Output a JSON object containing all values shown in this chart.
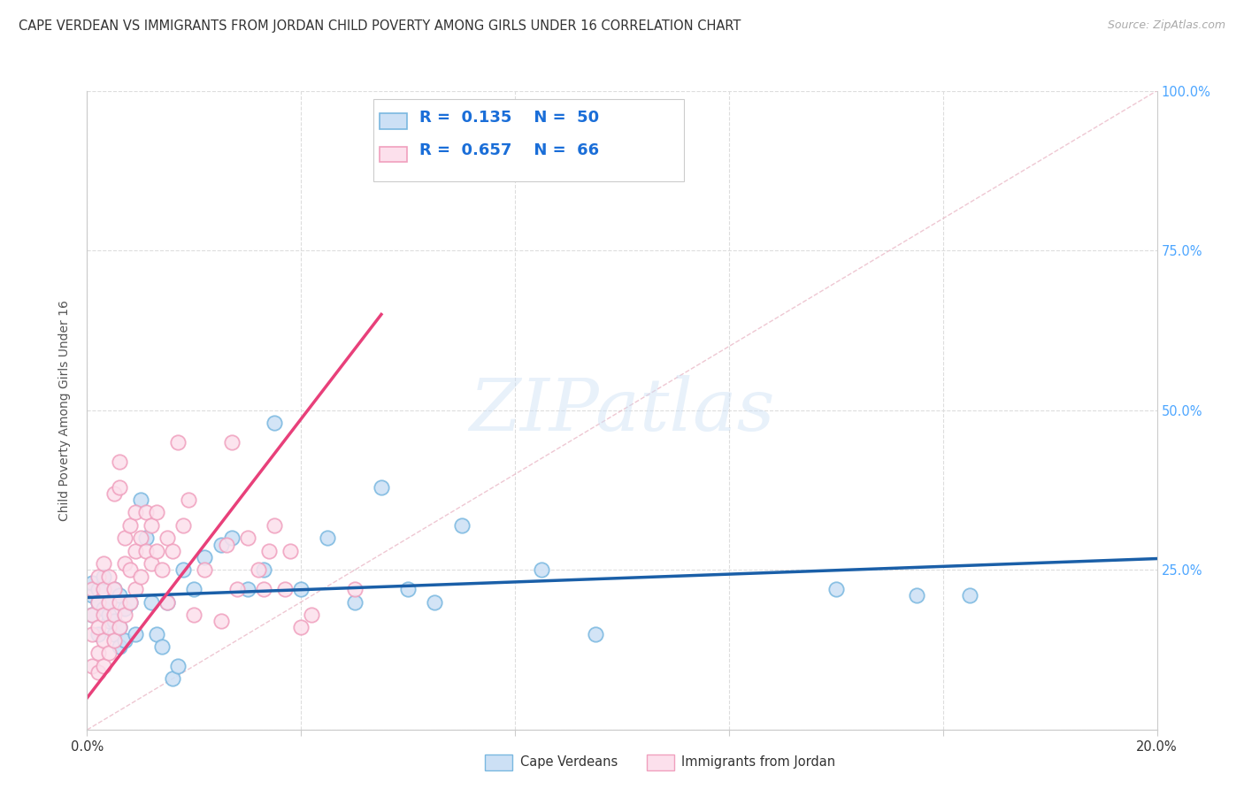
{
  "title": "CAPE VERDEAN VS IMMIGRANTS FROM JORDAN CHILD POVERTY AMONG GIRLS UNDER 16 CORRELATION CHART",
  "source": "Source: ZipAtlas.com",
  "ylabel": "Child Poverty Among Girls Under 16",
  "xlim": [
    0,
    0.2
  ],
  "ylim": [
    0,
    1.0
  ],
  "xticks": [
    0.0,
    0.04,
    0.08,
    0.12,
    0.16,
    0.2
  ],
  "yticks": [
    0.0,
    0.25,
    0.5,
    0.75,
    1.0
  ],
  "blue_R": 0.135,
  "blue_N": 50,
  "pink_R": 0.657,
  "pink_N": 66,
  "blue_scatter_color_face": "#cce0f5",
  "blue_scatter_color_edge": "#7ab8e0",
  "pink_scatter_color_face": "#fce0ec",
  "pink_scatter_color_edge": "#f0a0be",
  "blue_line_color": "#1a5fa8",
  "pink_line_color": "#e8407a",
  "diag_line_color": "#e8b0c0",
  "grid_color": "#dddddd",
  "watermark_color": "#cce0f5",
  "right_tick_color": "#4da6ff",
  "legend_label_blue": "Cape Verdeans",
  "legend_label_pink": "Immigrants from Jordan",
  "blue_scatter_x": [
    0.001,
    0.001,
    0.001,
    0.002,
    0.002,
    0.002,
    0.003,
    0.003,
    0.003,
    0.004,
    0.004,
    0.004,
    0.005,
    0.005,
    0.005,
    0.006,
    0.006,
    0.006,
    0.007,
    0.007,
    0.008,
    0.009,
    0.01,
    0.011,
    0.012,
    0.013,
    0.014,
    0.015,
    0.016,
    0.017,
    0.018,
    0.02,
    0.022,
    0.025,
    0.027,
    0.03,
    0.033,
    0.035,
    0.04,
    0.045,
    0.05,
    0.055,
    0.06,
    0.065,
    0.07,
    0.085,
    0.095,
    0.14,
    0.155,
    0.165
  ],
  "blue_scatter_y": [
    0.21,
    0.18,
    0.23,
    0.15,
    0.2,
    0.22,
    0.19,
    0.22,
    0.24,
    0.17,
    0.18,
    0.2,
    0.15,
    0.17,
    0.22,
    0.13,
    0.16,
    0.21,
    0.14,
    0.19,
    0.2,
    0.15,
    0.36,
    0.3,
    0.2,
    0.15,
    0.13,
    0.2,
    0.08,
    0.1,
    0.25,
    0.22,
    0.27,
    0.29,
    0.3,
    0.22,
    0.25,
    0.48,
    0.22,
    0.3,
    0.2,
    0.38,
    0.22,
    0.2,
    0.32,
    0.25,
    0.15,
    0.22,
    0.21,
    0.21
  ],
  "pink_scatter_x": [
    0.001,
    0.001,
    0.001,
    0.001,
    0.002,
    0.002,
    0.002,
    0.002,
    0.002,
    0.003,
    0.003,
    0.003,
    0.003,
    0.003,
    0.004,
    0.004,
    0.004,
    0.004,
    0.005,
    0.005,
    0.005,
    0.005,
    0.006,
    0.006,
    0.006,
    0.006,
    0.007,
    0.007,
    0.007,
    0.008,
    0.008,
    0.008,
    0.009,
    0.009,
    0.009,
    0.01,
    0.01,
    0.011,
    0.011,
    0.012,
    0.012,
    0.013,
    0.013,
    0.014,
    0.015,
    0.015,
    0.016,
    0.017,
    0.018,
    0.019,
    0.02,
    0.022,
    0.025,
    0.026,
    0.027,
    0.028,
    0.03,
    0.032,
    0.033,
    0.034,
    0.035,
    0.037,
    0.038,
    0.04,
    0.042,
    0.05
  ],
  "pink_scatter_y": [
    0.1,
    0.15,
    0.18,
    0.22,
    0.09,
    0.12,
    0.16,
    0.2,
    0.24,
    0.1,
    0.14,
    0.18,
    0.22,
    0.26,
    0.12,
    0.16,
    0.2,
    0.24,
    0.14,
    0.18,
    0.22,
    0.37,
    0.16,
    0.2,
    0.38,
    0.42,
    0.18,
    0.26,
    0.3,
    0.2,
    0.25,
    0.32,
    0.22,
    0.28,
    0.34,
    0.24,
    0.3,
    0.28,
    0.34,
    0.26,
    0.32,
    0.28,
    0.34,
    0.25,
    0.3,
    0.2,
    0.28,
    0.45,
    0.32,
    0.36,
    0.18,
    0.25,
    0.17,
    0.29,
    0.45,
    0.22,
    0.3,
    0.25,
    0.22,
    0.28,
    0.32,
    0.22,
    0.28,
    0.16,
    0.18,
    0.22
  ]
}
